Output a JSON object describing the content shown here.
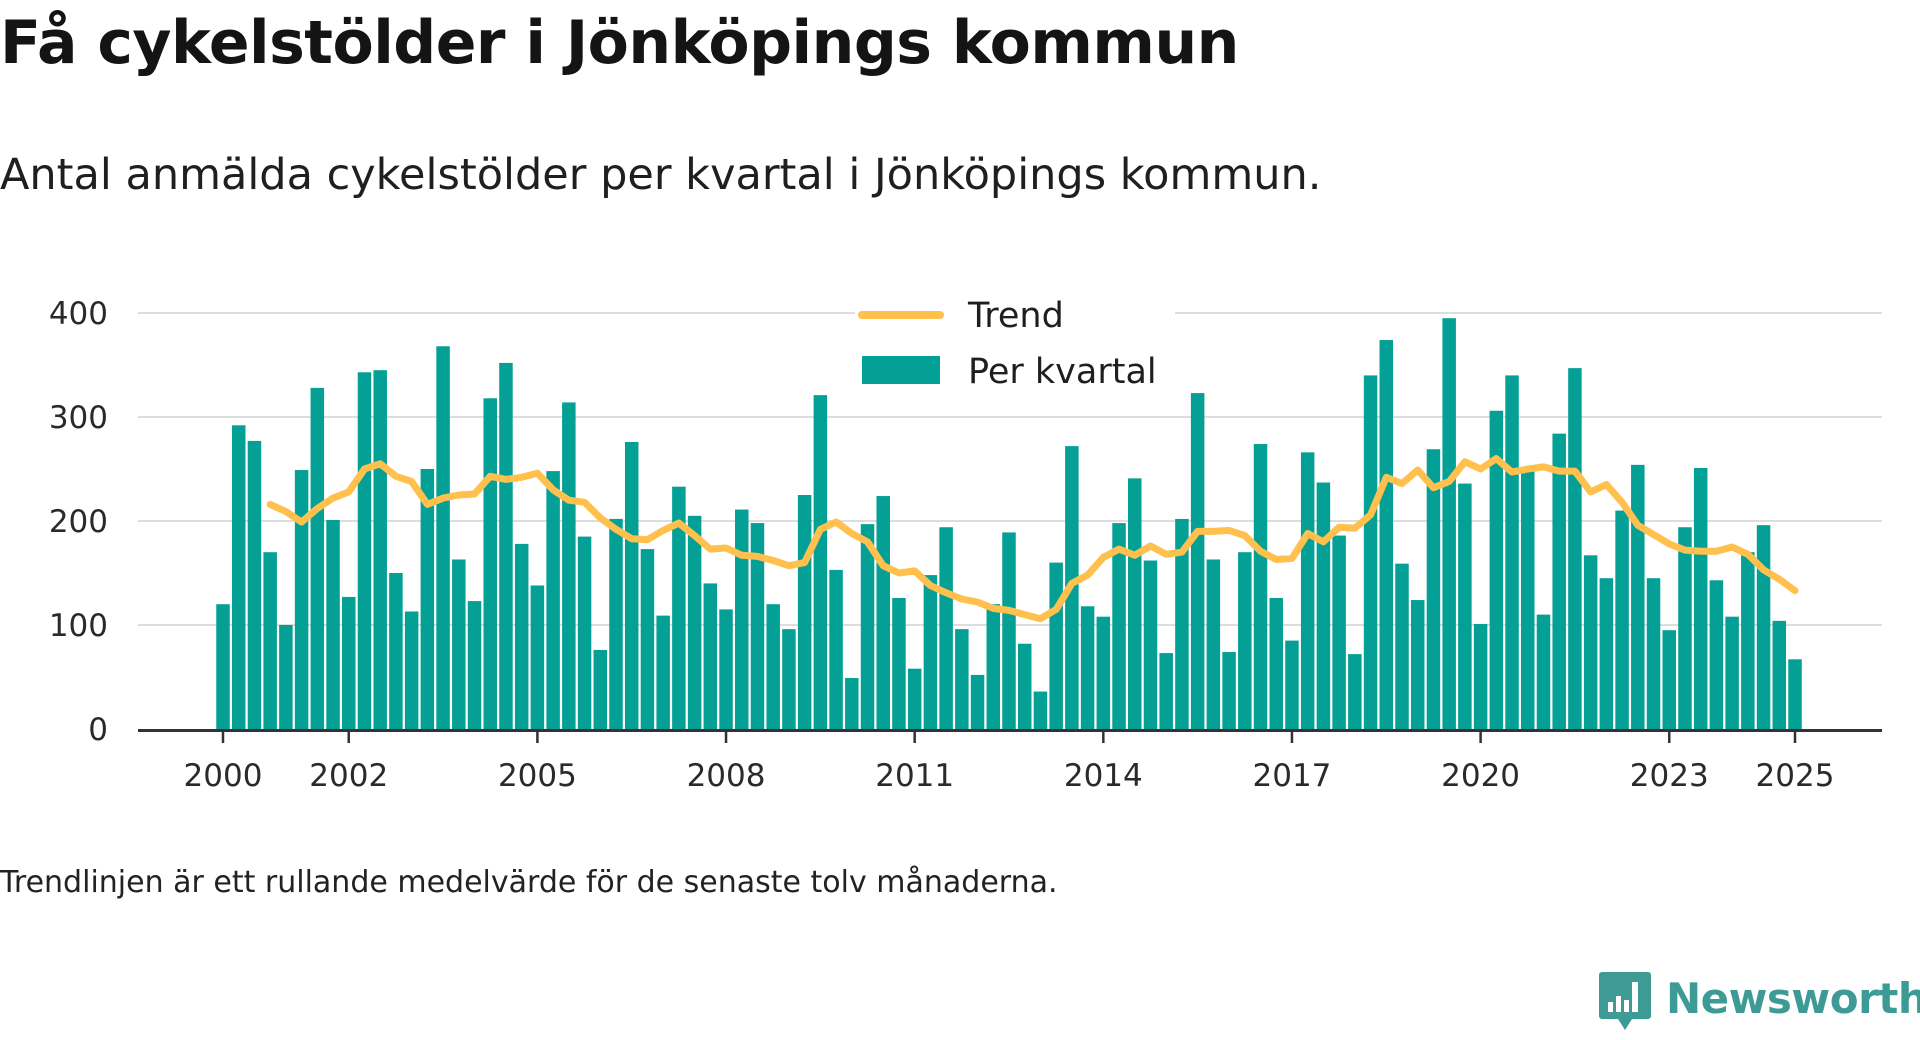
{
  "header": {
    "title": "Få cykelstölder i Jönköpings kommun",
    "subtitle": "Antal anmälda cykelstölder per kvartal i Jönköpings kommun."
  },
  "footnote": "Trendlinjen är ett rullande medelvärde för de senaste tolv månaderna.",
  "brand": {
    "name": "Newsworthy",
    "icon": "newsworthy-logo-icon",
    "color": "#3d9a95"
  },
  "colors": {
    "bars": "#05a095",
    "trend": "#ffc04d",
    "grid": "#dddddd",
    "axis": "#333333"
  },
  "chart_data": {
    "type": "bar",
    "title": "Få cykelstölder i Jönköpings kommun",
    "subtitle": "Antal anmälda cykelstölder per kvartal i Jönköpings kommun.",
    "xlabel": "",
    "ylabel": "",
    "ylim": [
      0,
      400
    ],
    "yticks": [
      0,
      100,
      200,
      300,
      400
    ],
    "xticks": [
      "2000",
      "2002",
      "2005",
      "2008",
      "2011",
      "2014",
      "2017",
      "2020",
      "2023",
      "2025"
    ],
    "grid": true,
    "legend_position": "top-center",
    "x_start": "2000 Q1",
    "series": [
      {
        "name": "Per kvartal",
        "type": "bar",
        "color": "#05a095",
        "values": [
          120,
          292,
          277,
          170,
          100,
          249,
          328,
          201,
          127,
          343,
          345,
          150,
          113,
          250,
          368,
          163,
          123,
          318,
          352,
          178,
          138,
          248,
          314,
          185,
          76,
          202,
          276,
          173,
          109,
          233,
          205,
          140,
          115,
          211,
          198,
          120,
          96,
          225,
          321,
          153,
          49,
          197,
          224,
          126,
          58,
          148,
          194,
          96,
          52,
          120,
          189,
          82,
          36,
          160,
          272,
          118,
          108,
          198,
          241,
          162,
          73,
          202,
          323,
          163,
          74,
          170,
          274,
          126,
          85,
          266,
          237,
          186,
          72,
          340,
          374,
          159,
          124,
          269,
          395,
          236,
          101,
          306,
          340,
          250,
          110,
          284,
          347,
          167,
          145,
          210,
          254,
          145,
          95,
          194,
          251,
          143,
          108,
          170,
          196,
          104,
          67
        ]
      },
      {
        "name": "Trend",
        "type": "line",
        "color": "#ffc04d",
        "start_index": 3,
        "values": [
          216,
          209,
          199,
          212,
          222,
          228,
          250,
          255,
          243,
          238,
          216,
          222,
          225,
          226,
          243,
          240,
          242,
          246,
          230,
          220,
          218,
          203,
          192,
          183,
          182,
          191,
          198,
          186,
          173,
          174,
          167,
          166,
          162,
          157,
          160,
          192,
          199,
          188,
          180,
          157,
          150,
          152,
          138,
          131,
          125,
          122,
          116,
          114,
          110,
          106,
          115,
          140,
          148,
          165,
          173,
          167,
          176,
          168,
          170,
          190,
          190,
          191,
          186,
          171,
          163,
          164,
          188,
          180,
          194,
          193,
          206,
          242,
          236,
          249,
          232,
          238,
          257,
          250,
          260,
          247,
          250,
          252,
          248,
          248,
          228,
          235,
          218,
          196,
          187,
          178,
          172,
          171,
          171,
          175,
          168,
          153,
          144,
          133
        ]
      }
    ]
  }
}
